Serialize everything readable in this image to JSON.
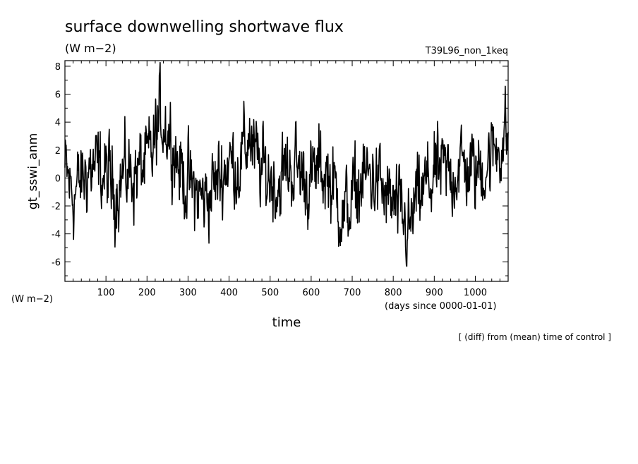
{
  "chart_data": {
    "type": "line",
    "title": "surface downwelling shortwave flux",
    "units": "(W m−2)",
    "experiment": "T39L96_non_1keq",
    "ylabel": "gt_sswi_anm",
    "yunits": "(W m−2)",
    "xlabel": "time",
    "xunits": "(days since 0000-01-01)",
    "note": "[ (diff) from (mean) time of control ]",
    "xlim": [
      0,
      1080
    ],
    "ylim": [
      -7.4,
      8.4
    ],
    "xticks": [
      100,
      200,
      300,
      400,
      500,
      600,
      700,
      800,
      900,
      1000
    ],
    "yticks": [
      -6,
      -4,
      -2,
      0,
      2,
      4,
      6,
      8
    ],
    "grid": false,
    "series": [
      {
        "color": "#000000",
        "x": [
          0,
          20,
          40,
          60,
          80,
          100,
          120,
          140,
          160,
          180,
          200,
          215,
          225,
          235,
          245,
          255,
          265,
          280,
          300,
          320,
          340,
          360,
          380,
          400,
          420,
          440,
          450,
          460,
          480,
          500,
          520,
          540,
          560,
          580,
          600,
          620,
          640,
          660,
          680,
          700,
          720,
          740,
          760,
          780,
          800,
          820,
          840,
          850,
          860,
          880,
          900,
          920,
          940,
          960,
          980,
          1000,
          1020,
          1040,
          1060,
          1080
        ],
        "y": [
          0.5,
          -1.2,
          -0.3,
          0.8,
          0.4,
          0.2,
          -0.8,
          0.1,
          0.3,
          0.6,
          0.9,
          1.8,
          3.5,
          4.5,
          4.0,
          3.2,
          2.5,
          0.6,
          -0.4,
          -1.2,
          -1.5,
          -0.7,
          0.3,
          1.2,
          0.9,
          2.0,
          3.5,
          1.5,
          0.5,
          0.1,
          -0.5,
          0.6,
          0.9,
          0.2,
          -0.3,
          0.6,
          0.3,
          -1.1,
          -2.8,
          -1.6,
          -0.5,
          0.2,
          -0.2,
          -1.3,
          -2.0,
          -3.0,
          -4.0,
          -2.5,
          -1.6,
          -0.6,
          0.1,
          0.4,
          0.2,
          0.9,
          0.7,
          0.4,
          0.8,
          1.6,
          2.6,
          3.2
        ]
      }
    ]
  }
}
